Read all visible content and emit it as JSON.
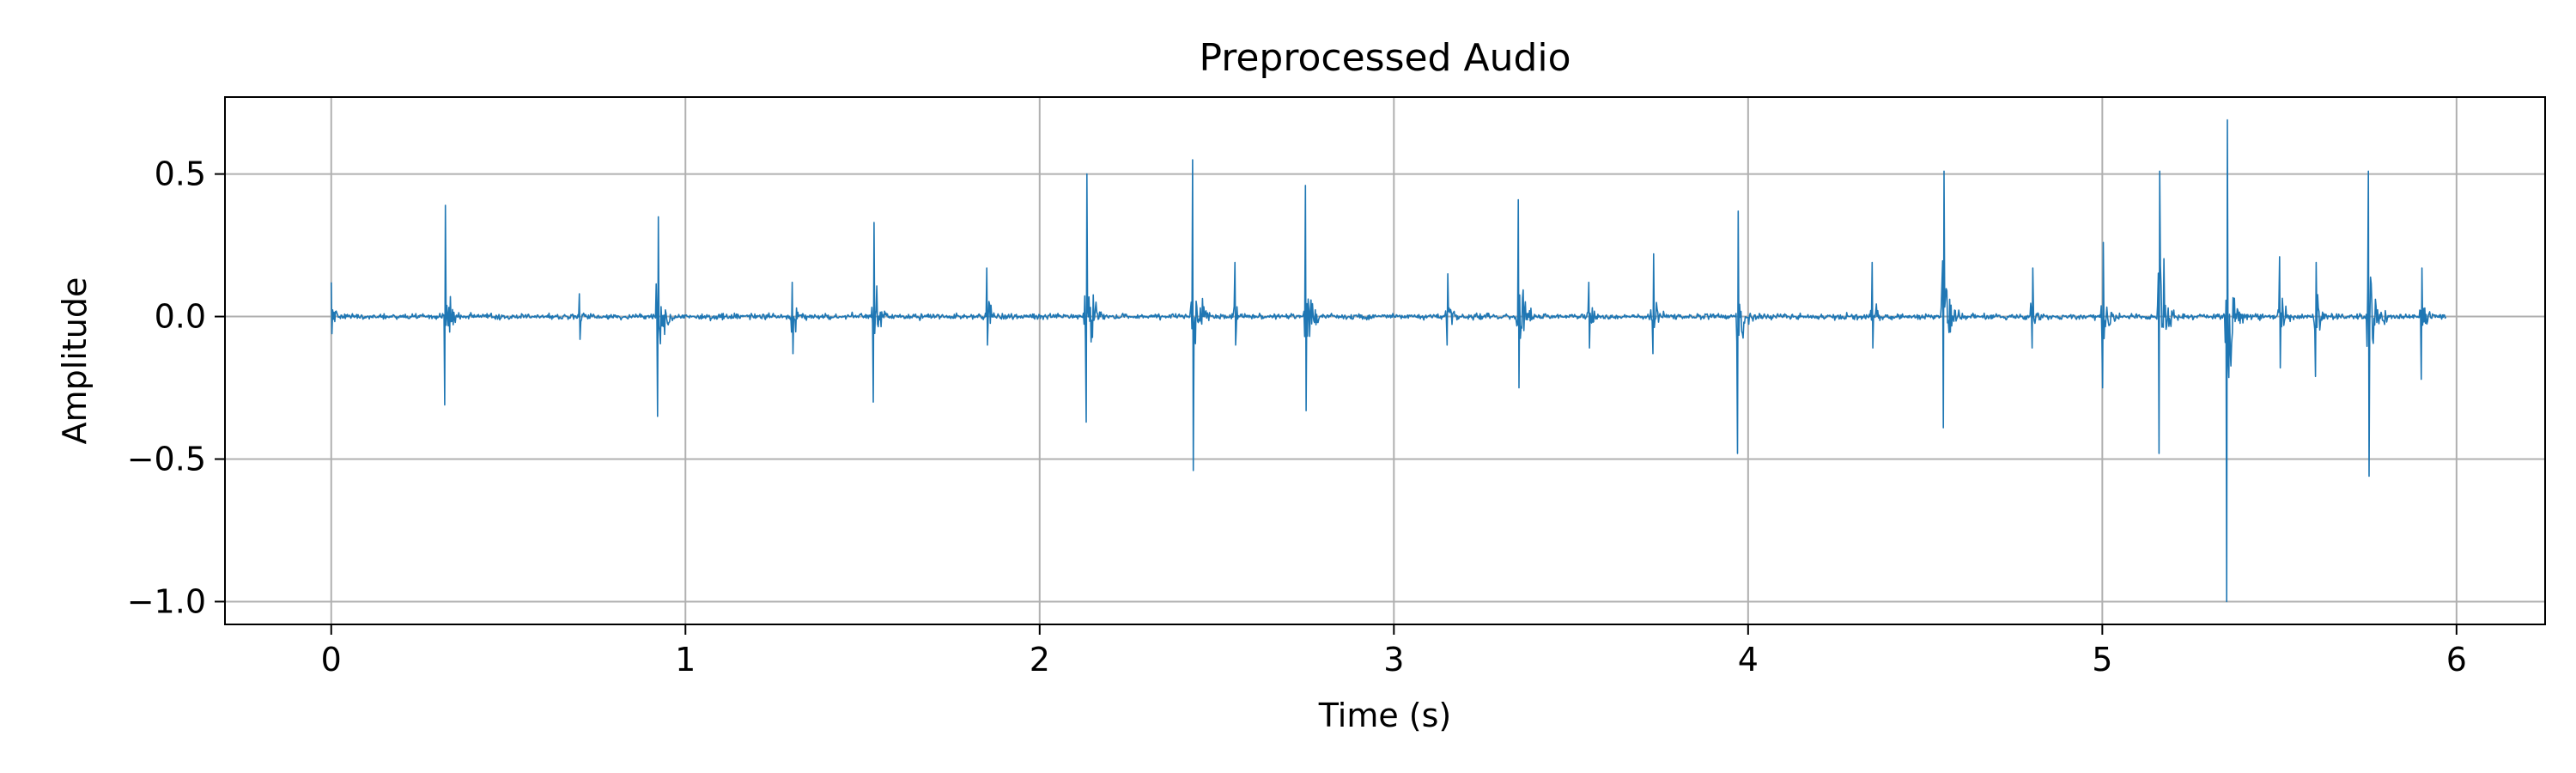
{
  "chart_data": {
    "type": "line",
    "title": "Preprocessed Audio",
    "xlabel": "Time (s)",
    "ylabel": "Amplitude",
    "xlim": [
      -0.3,
      6.25
    ],
    "ylim": [
      -1.08,
      0.77
    ],
    "grid": true,
    "x_ticks": [
      0,
      1,
      2,
      3,
      4,
      5,
      6
    ],
    "x_tick_labels": [
      "0",
      "1",
      "2",
      "3",
      "4",
      "5",
      "6"
    ],
    "y_ticks": [
      -1.0,
      -0.5,
      0.0,
      0.5
    ],
    "y_tick_labels": [
      "−1.0",
      "−0.5",
      "0.0",
      "0.5"
    ],
    "series": [
      {
        "color": "#1f77b4",
        "duration": 5.97,
        "noise_floor": 0.018,
        "bursts": [
          {
            "t": 0.0,
            "peak": 0.12,
            "trough": -0.06
          },
          {
            "t": 0.32,
            "peak": 0.39,
            "trough": -0.31
          },
          {
            "t": 0.7,
            "peak": 0.08,
            "trough": -0.08
          },
          {
            "t": 0.92,
            "peak": 0.35,
            "trough": -0.35
          },
          {
            "t": 1.3,
            "peak": 0.12,
            "trough": -0.13
          },
          {
            "t": 1.53,
            "peak": 0.33,
            "trough": -0.3
          },
          {
            "t": 1.85,
            "peak": 0.17,
            "trough": -0.1
          },
          {
            "t": 2.13,
            "peak": 0.5,
            "trough": -0.37
          },
          {
            "t": 2.43,
            "peak": 0.55,
            "trough": -0.54
          },
          {
            "t": 2.55,
            "peak": 0.19,
            "trough": -0.1
          },
          {
            "t": 2.75,
            "peak": 0.46,
            "trough": -0.33
          },
          {
            "t": 3.15,
            "peak": 0.15,
            "trough": -0.1
          },
          {
            "t": 3.35,
            "peak": 0.41,
            "trough": -0.25
          },
          {
            "t": 3.55,
            "peak": 0.12,
            "trough": -0.11
          },
          {
            "t": 3.73,
            "peak": 0.22,
            "trough": -0.13
          },
          {
            "t": 3.97,
            "peak": 0.37,
            "trough": -0.48
          },
          {
            "t": 4.35,
            "peak": 0.19,
            "trough": -0.11
          },
          {
            "t": 4.55,
            "peak": 0.51,
            "trough": -0.39
          },
          {
            "t": 4.8,
            "peak": 0.17,
            "trough": -0.11
          },
          {
            "t": 5.0,
            "peak": 0.26,
            "trough": -0.25
          },
          {
            "t": 5.16,
            "peak": 0.51,
            "trough": -0.48
          },
          {
            "t": 5.35,
            "peak": 0.69,
            "trough": -1.0
          },
          {
            "t": 5.5,
            "peak": 0.21,
            "trough": -0.18
          },
          {
            "t": 5.6,
            "peak": 0.19,
            "trough": -0.21
          },
          {
            "t": 5.75,
            "peak": 0.51,
            "trough": -0.56
          },
          {
            "t": 5.9,
            "peak": 0.17,
            "trough": -0.22
          }
        ]
      }
    ]
  }
}
